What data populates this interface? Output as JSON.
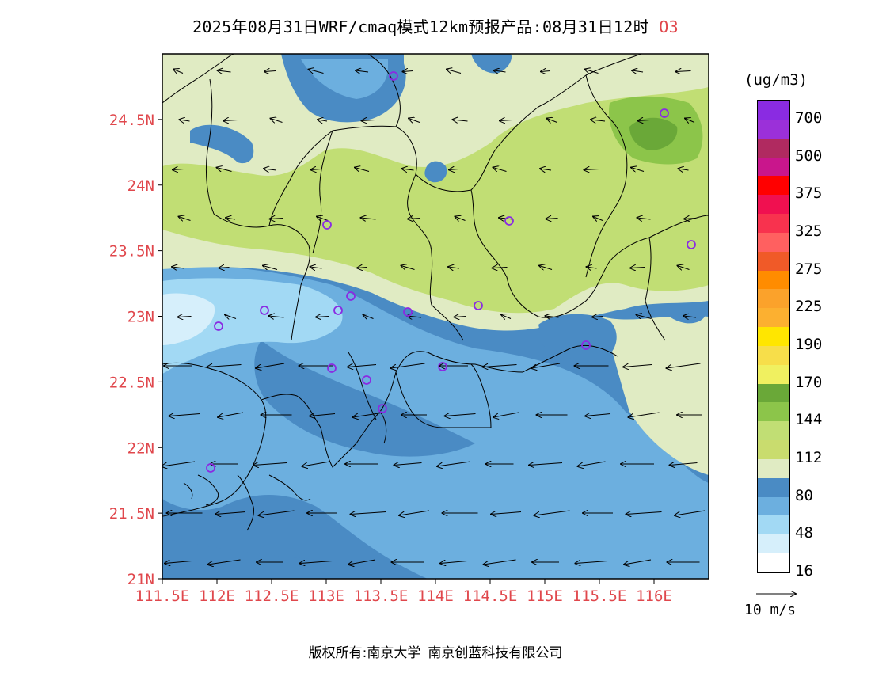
{
  "title": {
    "main": "2025年08月31日WRF/cmaq模式12km预报产品:08月31日12时",
    "species": "O3"
  },
  "map": {
    "lat_labels": [
      "24.5N",
      "24N",
      "23.5N",
      "23N",
      "22.5N",
      "22N",
      "21.5N",
      "21N"
    ],
    "lon_labels": [
      "111.5E",
      "112E",
      "112.5E",
      "113E",
      "113.5E",
      "114E",
      "114.5E",
      "115E",
      "115.5E",
      "116E"
    ],
    "lat_range": [
      21,
      25
    ],
    "lon_range": [
      111.5,
      116.5
    ],
    "colors": {
      "low_blue": "#4a8bc4",
      "mid_blue": "#6cafdf",
      "light_blue": "#a2d9f4",
      "pale": "#e0ebc3",
      "green1": "#c1de74",
      "green2": "#8cc54a",
      "green3": "#6aa838"
    },
    "wind_arrow_direction": "westward",
    "station_marker": "purple-circle"
  },
  "legend": {
    "unit": "(ug/m3)",
    "labels": [
      "700",
      "500",
      "375",
      "325",
      "275",
      "225",
      "190",
      "170",
      "144",
      "112",
      "80",
      "48",
      "16"
    ],
    "colors": [
      "#8a2be2",
      "#9b30d9",
      "#b02a60",
      "#c9168c",
      "#ff0000",
      "#f01050",
      "#f8324e",
      "#ff6060",
      "#f05a28",
      "#ff8c00",
      "#fba22b",
      "#fcb030",
      "#ffe600",
      "#f7de4a",
      "#f0f060",
      "#6aa838",
      "#8cc54a",
      "#c1de74",
      "#c9dc6e",
      "#e0ebc3",
      "#4a8bc4",
      "#6cafdf",
      "#a2d9f4",
      "#d6effb",
      "#ffffff"
    ]
  },
  "wind_ref": {
    "label": "10  m/s"
  },
  "footer": {
    "left": "版权所有:南京大学",
    "right": "南京创蓝科技有限公司"
  }
}
